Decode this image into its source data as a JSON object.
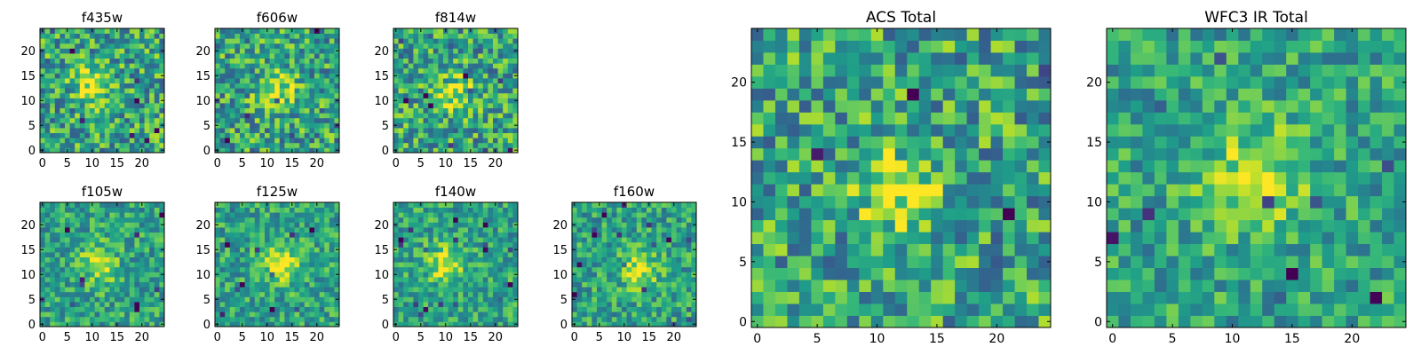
{
  "chart_data": [
    {
      "type": "heatmap",
      "title": "f435w",
      "xticks": [
        0,
        5,
        10,
        15,
        20
      ],
      "yticks": [
        0,
        5,
        10,
        15,
        20
      ],
      "xlim": [
        -0.5,
        24.5
      ],
      "ylim": [
        -0.5,
        24.5
      ],
      "grid_size": 25,
      "colormap": "viridis",
      "peak": [
        10,
        13
      ]
    },
    {
      "type": "heatmap",
      "title": "f606w",
      "xticks": [
        0,
        5,
        10,
        15,
        20
      ],
      "yticks": [
        0,
        5,
        10,
        15,
        20
      ],
      "xlim": [
        -0.5,
        24.5
      ],
      "ylim": [
        -0.5,
        24.5
      ],
      "grid_size": 25,
      "colormap": "viridis",
      "peak": [
        12,
        12
      ]
    },
    {
      "type": "heatmap",
      "title": "f814w",
      "xticks": [
        0,
        5,
        10,
        15,
        20
      ],
      "yticks": [
        0,
        5,
        10,
        15,
        20
      ],
      "xlim": [
        -0.5,
        24.5
      ],
      "ylim": [
        -0.5,
        24.5
      ],
      "grid_size": 25,
      "colormap": "viridis",
      "peak": [
        12,
        11
      ]
    },
    {
      "type": "heatmap",
      "title": "f105w",
      "xticks": [
        0,
        5,
        10,
        15,
        20
      ],
      "yticks": [
        0,
        5,
        10,
        15,
        20
      ],
      "xlim": [
        -0.5,
        24.5
      ],
      "ylim": [
        -0.5,
        24.5
      ],
      "grid_size": 25,
      "colormap": "viridis",
      "peak": [
        11,
        12
      ]
    },
    {
      "type": "heatmap",
      "title": "f125w",
      "xticks": [
        0,
        5,
        10,
        15,
        20
      ],
      "yticks": [
        0,
        5,
        10,
        15,
        20
      ],
      "xlim": [
        -0.5,
        24.5
      ],
      "ylim": [
        -0.5,
        24.5
      ],
      "grid_size": 25,
      "colormap": "viridis",
      "peak": [
        13,
        12
      ]
    },
    {
      "type": "heatmap",
      "title": "f140w",
      "xticks": [
        0,
        5,
        10,
        15,
        20
      ],
      "yticks": [
        0,
        5,
        10,
        15,
        20
      ],
      "xlim": [
        -0.5,
        24.5
      ],
      "ylim": [
        -0.5,
        24.5
      ],
      "grid_size": 25,
      "colormap": "viridis",
      "peak": [
        10,
        12
      ]
    },
    {
      "type": "heatmap",
      "title": "f160w",
      "xticks": [
        0,
        5,
        10,
        15,
        20
      ],
      "yticks": [
        0,
        5,
        10,
        15,
        20
      ],
      "xlim": [
        -0.5,
        24.5
      ],
      "ylim": [
        -0.5,
        24.5
      ],
      "grid_size": 25,
      "colormap": "viridis",
      "peak": [
        13,
        11
      ]
    },
    {
      "type": "heatmap",
      "title": "ACS Total",
      "xticks": [
        0,
        5,
        10,
        15,
        20
      ],
      "yticks": [
        0,
        5,
        10,
        15,
        20
      ],
      "xlim": [
        -0.5,
        24.5
      ],
      "ylim": [
        -0.5,
        24.5
      ],
      "grid_size": 25,
      "colormap": "viridis",
      "peak": [
        12,
        11
      ]
    },
    {
      "type": "heatmap",
      "title": "WFC3 IR Total",
      "xticks": [
        0,
        5,
        10,
        15,
        20
      ],
      "yticks": [
        0,
        5,
        10,
        15,
        20
      ],
      "xlim": [
        -0.5,
        24.5
      ],
      "ylim": [
        -0.5,
        24.5
      ],
      "grid_size": 25,
      "colormap": "viridis",
      "peak": [
        12,
        12
      ]
    }
  ]
}
